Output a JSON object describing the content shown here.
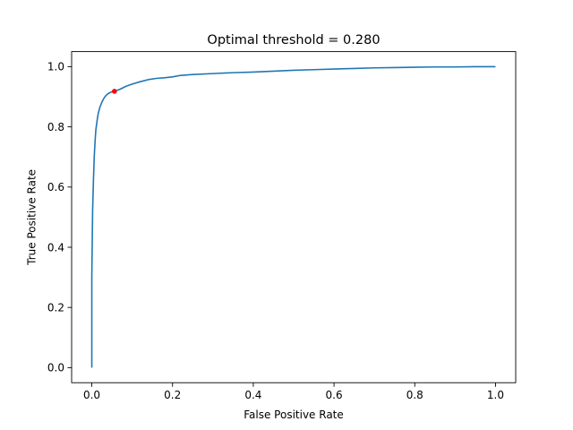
{
  "chart_data": {
    "type": "line",
    "title": "Optimal threshold = 0.280",
    "xlabel": "False Positive Rate",
    "ylabel": "True Positive Rate",
    "xlim": [
      -0.05,
      1.05
    ],
    "ylim": [
      -0.05,
      1.05
    ],
    "grid": false,
    "xticks": [
      {
        "value": 0.0,
        "label": "0.0"
      },
      {
        "value": 0.2,
        "label": "0.2"
      },
      {
        "value": 0.4,
        "label": "0.4"
      },
      {
        "value": 0.6,
        "label": "0.6"
      },
      {
        "value": 0.8,
        "label": "0.8"
      },
      {
        "value": 1.0,
        "label": "1.0"
      }
    ],
    "yticks": [
      {
        "value": 0.0,
        "label": "0.0"
      },
      {
        "value": 0.2,
        "label": "0.2"
      },
      {
        "value": 0.4,
        "label": "0.4"
      },
      {
        "value": 0.6,
        "label": "0.6"
      },
      {
        "value": 0.8,
        "label": "0.8"
      },
      {
        "value": 1.0,
        "label": "1.0"
      }
    ],
    "series": [
      {
        "color": "#1f77b4",
        "x": [
          0.0,
          0.0,
          0.002,
          0.004,
          0.006,
          0.008,
          0.01,
          0.013,
          0.016,
          0.02,
          0.025,
          0.03,
          0.035,
          0.04,
          0.05,
          0.056,
          0.07,
          0.085,
          0.1,
          0.12,
          0.14,
          0.16,
          0.18,
          0.2,
          0.22,
          0.25,
          0.3,
          0.35,
          0.4,
          0.45,
          0.5,
          0.55,
          0.6,
          0.65,
          0.7,
          0.75,
          0.8,
          0.85,
          0.9,
          0.95,
          1.0
        ],
        "y": [
          0.0,
          0.3,
          0.52,
          0.62,
          0.7,
          0.75,
          0.79,
          0.82,
          0.845,
          0.865,
          0.882,
          0.895,
          0.904,
          0.91,
          0.917,
          0.918,
          0.925,
          0.935,
          0.942,
          0.95,
          0.957,
          0.961,
          0.963,
          0.966,
          0.971,
          0.974,
          0.977,
          0.98,
          0.982,
          0.985,
          0.988,
          0.99,
          0.992,
          0.994,
          0.996,
          0.997,
          0.998,
          0.999,
          0.999,
          1.0,
          1.0
        ]
      }
    ],
    "optimal_point": {
      "x": 0.056,
      "y": 0.918,
      "color": "#ff0000"
    }
  }
}
